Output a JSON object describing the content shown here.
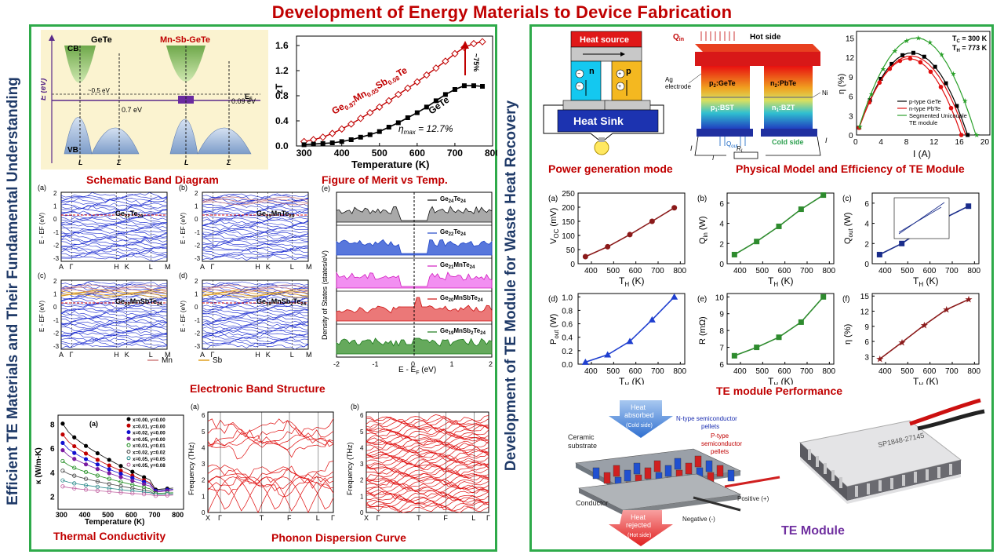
{
  "title": "Development of Energy Materials to Device Fabrication",
  "left_vertical": "Efficient TE Materials and Their Fundamental Understanding",
  "right_vertical": "Development of TE Module for Waste Heat Recovery",
  "captions": {
    "band_diagram": "Schematic Band Diagram",
    "zt": "Figure of Merit vs Temp.",
    "electronic": "Electronic Band Structure",
    "thermal": "Thermal Conductivity",
    "phonon": "Phonon Dispersion Curve",
    "power_mode": "Power generation mode",
    "physical": "Physical Model and Efficiency of TE Module",
    "performance": "TE module Performance",
    "module": "TE Module"
  },
  "band_diagram": {
    "cb": "CB",
    "vb": "VB",
    "left": "GeTe",
    "right": "Mn-Sb-GeTe",
    "e_axis": "E (eV)",
    "ef": "E",
    "ef_sub": "F",
    "gap1": "~0.5 eV",
    "gap2": "0.7 eV",
    "gap3": "0.09 eV",
    "L": "L",
    "Sigma": "Σ"
  },
  "zt_chart": {
    "ylabel": "zT",
    "xlabel": "Temperature (K)",
    "xticks": [
      "300",
      "400",
      "500",
      "600",
      "700",
      "800"
    ],
    "yticks": [
      "0.0",
      "0.4",
      "0.8",
      "1.2",
      "1.6"
    ],
    "series_labels": {
      "a": "Ge",
      "a_sub": "0.87",
      "a2": "Mn",
      "a2_sub": "0.05",
      "a3": "Sb",
      "a3_sub": "0.08",
      "a4": "Te",
      "b": "GeTe"
    },
    "annotation": "~75%",
    "eta": "η",
    "eta_sub": "max",
    "eta_val": " = 12.7%"
  },
  "band_structure": {
    "ylabel": "E - E",
    "ylabel_sub": "F",
    "ylabel_end": " (eV)",
    "yticks": [
      "2",
      "1",
      "0",
      "-1",
      "-2",
      "-3"
    ],
    "kpath": [
      "A",
      "Γ",
      "H",
      "K",
      "L",
      "M"
    ],
    "panels": [
      {
        "tag": "(a)",
        "name": "Ge",
        "s1": "22",
        "p2": "Te",
        "s2": "24"
      },
      {
        "tag": "(b)",
        "name": "Ge",
        "s1": "21",
        "p2": "MnTe",
        "s2": "24"
      },
      {
        "tag": "(c)",
        "name": "Ge",
        "s1": "20",
        "p2": "MnSbTe",
        "s2": "24"
      },
      {
        "tag": "(d)",
        "name": "Ge",
        "s1": "19",
        "p2": "MnSb",
        "s2": "2",
        "p3": "Te",
        "s3": "24"
      }
    ],
    "legend": {
      "mn": "Mn",
      "sb": "Sb"
    }
  },
  "dos": {
    "tag": "(e)",
    "ylabel": "Density of States (states/eV)",
    "xlabel": "E - E",
    "xlabel_sub": "F",
    "xlabel_end": " (eV)",
    "xticks": [
      "-2",
      "-1",
      "0",
      "1",
      "2"
    ],
    "rows": [
      {
        "p1": "Ge",
        "s1": "24",
        "p2": "Te",
        "s2": "24",
        "color": "#111111",
        "fill": "#9a9a9a"
      },
      {
        "p1": "Ge",
        "s1": "22",
        "p2": "Te",
        "s2": "24",
        "color": "#2146c7",
        "fill": "#3b5fd6"
      },
      {
        "p1": "Ge",
        "s1": "21",
        "p2": "MnTe",
        "s2": "24",
        "color": "#d11dbf",
        "fill": "#f07bef"
      },
      {
        "p1": "Ge",
        "s1": "20",
        "p2": "MnSbTe",
        "s2": "24",
        "color": "#cc1010",
        "fill": "#e86060"
      },
      {
        "p1": "Ge",
        "s1": "19",
        "p2": "MnSb",
        "s2": "2",
        "p3": "Te",
        "s3": "24",
        "color": "#1a7a1a",
        "fill": "#4a9a40"
      }
    ]
  },
  "thermal_chart": {
    "tag": "(a)",
    "ylabel": "κ (W/m-K)",
    "xlabel": "Temperature (K)",
    "xticks": [
      "300",
      "400",
      "500",
      "600",
      "700",
      "800"
    ],
    "yticks": [
      "2",
      "4",
      "6",
      "8"
    ],
    "legend": [
      "x=0.00, y=0.00",
      "x=0.01, y=0.00",
      "x=0.02, y=0.00",
      "x=0.05, y=0.00",
      "x=0.01, y=0.01",
      "x=0.02, y=0.02",
      "x=0.05, y=0.05",
      "x=0.05, y=0.08"
    ]
  },
  "phonon": {
    "tag_a": "(a)",
    "tag_b": "(b)",
    "ylabel": "Frequency (THz)",
    "yticks": [
      "0",
      "1",
      "2",
      "3",
      "4",
      "5",
      "6"
    ],
    "kpath_a": [
      "X",
      "Γ",
      "T",
      "F",
      "L",
      "Γ"
    ],
    "kpath_b": [
      "X",
      "Γ",
      "T",
      "F",
      "L",
      "Γ"
    ]
  },
  "power_mode": {
    "heat_source": "Heat source",
    "n": "n",
    "p": "p",
    "heat_sink": "Heat Sink"
  },
  "physical_model": {
    "qin": "Q",
    "qin_sub": "in",
    "hot": "Hot side",
    "cold": "Cold side",
    "ag": "Ag",
    "electrode": "electrode",
    "ni": "Ni",
    "p2": "p",
    "p2_sub": "2",
    "p2_name": ":GeTe",
    "n2": "n",
    "n2_sub": "2",
    "n2_name": ":PbTe",
    "p1": "p",
    "p1_sub": "1",
    "p1_name": ":BST",
    "n1": "n",
    "n1_sub": "1",
    "n1_name": ":BZT",
    "qout": "Q",
    "qout_sub": "out",
    "I": "I",
    "RL": "R",
    "RL_sub": "L"
  },
  "efficiency_chart": {
    "ylabel": "η (%)",
    "xlabel": "I (A)",
    "xticks": [
      "0",
      "4",
      "8",
      "12",
      "16",
      "20"
    ],
    "yticks": [
      "0",
      "3",
      "6",
      "9",
      "12",
      "15"
    ],
    "tc": "T",
    "tc_sub": "C",
    "tc_val": " = 300 K",
    "th": "T",
    "th_sub": "H",
    "th_val": " = 773 K",
    "legend": [
      "p-type GeTe",
      "n-type PbTe",
      "Segmented Unicouple",
      "TE module"
    ]
  },
  "perf_charts": [
    {
      "tag": "(a)",
      "ylabel": "V",
      "ysub": "OC",
      "yunit": " (mV)",
      "yticks": [
        "0",
        "50",
        "100",
        "150",
        "200",
        "250"
      ],
      "color": "#8b1a1a",
      "marker": "circle",
      "ymin": 0,
      "ymax": 250,
      "values": [
        25,
        60,
        103,
        150,
        198
      ]
    },
    {
      "tag": "(b)",
      "ylabel": "Q",
      "ysub": "in",
      "yunit": " (W)",
      "yticks": [
        "0",
        "2",
        "4",
        "6"
      ],
      "color": "#2e8b2e",
      "marker": "square",
      "ymin": 0,
      "ymax": 7,
      "values": [
        0.9,
        2.2,
        3.7,
        5.4,
        6.8
      ]
    },
    {
      "tag": "(c)",
      "ylabel": "Q",
      "ysub": "out",
      "yunit": " (W)",
      "yticks": [
        "0",
        "2",
        "4",
        "6"
      ],
      "color": "#1a2d8b",
      "marker": "square",
      "ymin": 0,
      "ymax": 7,
      "values": [
        0.9,
        2.0,
        3.5,
        4.6,
        5.7
      ]
    },
    {
      "tag": "(d)",
      "ylabel": "P",
      "ysub": "out",
      "yunit": " (W)",
      "yticks": [
        "0.0",
        "0.2",
        "0.4",
        "0.6",
        "0.8",
        "1.0"
      ],
      "color": "#1f3fcf",
      "marker": "triangle",
      "ymin": 0,
      "ymax": 1.05,
      "values": [
        0.03,
        0.14,
        0.34,
        0.66,
        1.0
      ]
    },
    {
      "tag": "(e)",
      "ylabel": "R",
      "ysub": "",
      "yunit": " (mΩ)",
      "yticks": [
        "6",
        "7",
        "8",
        "9",
        "10"
      ],
      "color": "#2e8b2e",
      "marker": "square",
      "ymin": 6,
      "ymax": 10.2,
      "values": [
        6.5,
        7.0,
        7.6,
        8.5,
        10.0
      ]
    },
    {
      "tag": "(f)",
      "ylabel": "η",
      "ysub": "",
      "yunit": " (%)",
      "yticks": [
        "3",
        "6",
        "9",
        "12",
        "15"
      ],
      "color": "#8b1a1a",
      "marker": "star",
      "ymin": 1.5,
      "ymax": 15.5,
      "values": [
        2.5,
        5.8,
        9.2,
        12.3,
        14.3
      ]
    }
  ],
  "perf_common": {
    "xlabel": "T",
    "xsub": "H",
    "xunit": " (K)",
    "xticks": [
      "400",
      "500",
      "600",
      "700",
      "800"
    ],
    "x": [
      373,
      473,
      573,
      673,
      773
    ]
  },
  "module_diagram": {
    "heat_absorbed": "Heat",
    "absorbed": "absorbed",
    "cold": "(Cold side)",
    "ntype": "N-type semiconductor",
    "ntype2": "pellets",
    "ptype": "P-type",
    "ptype2": "semiconductor",
    "ptype3": "pellets",
    "ceramic": "Ceramic",
    "substrate": "substrate",
    "conductor": "Conductor",
    "heat_rej": "Heat",
    "rejected": "rejected",
    "hot": "(Hot side)",
    "positive": "Positive (+)",
    "negative": "Negative (-)"
  }
}
